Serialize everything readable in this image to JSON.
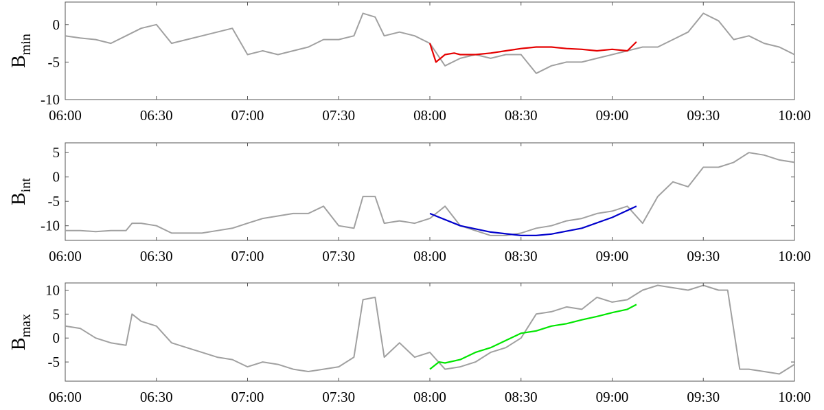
{
  "colors": {
    "raw": "#a0a0a0",
    "min_fit": "#e50000",
    "int_fit": "#0000cc",
    "max_fit": "#00e600",
    "axis": "#555555"
  },
  "chart_data": [
    {
      "type": "line",
      "ylabel_main": "B",
      "ylabel_sub": "min",
      "x_ticks": [
        "06:00",
        "06:30",
        "07:00",
        "07:30",
        "08:00",
        "08:30",
        "09:00",
        "09:30",
        "10:00"
      ],
      "xlim": [
        "06:00",
        "10:00"
      ],
      "ylim": [
        -10,
        3
      ],
      "y_ticks": [
        0,
        -5,
        -10
      ],
      "grid": false,
      "series": [
        {
          "role": "raw",
          "x": [
            "06:00",
            "06:05",
            "06:10",
            "06:15",
            "06:20",
            "06:25",
            "06:30",
            "06:35",
            "06:40",
            "06:45",
            "06:50",
            "06:55",
            "07:00",
            "07:05",
            "07:10",
            "07:15",
            "07:20",
            "07:25",
            "07:30",
            "07:35",
            "07:38",
            "07:42",
            "07:45",
            "07:50",
            "07:55",
            "08:00",
            "08:05",
            "08:10",
            "08:15",
            "08:20",
            "08:25",
            "08:30",
            "08:35",
            "08:40",
            "08:45",
            "08:50",
            "08:55",
            "09:00",
            "09:05",
            "09:10",
            "09:15",
            "09:20",
            "09:25",
            "09:30",
            "09:35",
            "09:40",
            "09:45",
            "09:50",
            "09:55",
            "10:00"
          ],
          "values": [
            -1.5,
            -1.8,
            -2.0,
            -2.5,
            -1.5,
            -0.5,
            0.0,
            -2.5,
            -2.0,
            -1.5,
            -1.0,
            -0.5,
            -4.0,
            -3.5,
            -4.0,
            -3.5,
            -3.0,
            -2.0,
            -2.0,
            -1.5,
            1.5,
            1.0,
            -1.5,
            -1.0,
            -1.5,
            -2.5,
            -5.5,
            -4.5,
            -4.0,
            -4.5,
            -4.0,
            -4.0,
            -6.5,
            -5.5,
            -5.0,
            -5.0,
            -4.5,
            -4.0,
            -3.5,
            -3.0,
            -3.0,
            -2.0,
            -1.0,
            1.5,
            0.5,
            -2.0,
            -1.5,
            -2.5,
            -3.0,
            -4.0
          ]
        },
        {
          "role": "min_fit",
          "x": [
            "08:00",
            "08:02",
            "08:05",
            "08:08",
            "08:10",
            "08:15",
            "08:20",
            "08:25",
            "08:30",
            "08:35",
            "08:40",
            "08:45",
            "08:50",
            "08:55",
            "09:00",
            "09:05",
            "09:08"
          ],
          "values": [
            -2.5,
            -5.0,
            -4.0,
            -3.8,
            -4.0,
            -4.0,
            -3.8,
            -3.5,
            -3.2,
            -3.0,
            -3.0,
            -3.2,
            -3.3,
            -3.5,
            -3.3,
            -3.5,
            -2.3
          ]
        }
      ]
    },
    {
      "type": "line",
      "ylabel_main": "B",
      "ylabel_sub": "int",
      "x_ticks": [
        "06:00",
        "06:30",
        "07:00",
        "07:30",
        "08:00",
        "08:30",
        "09:00",
        "09:30",
        "10:00"
      ],
      "xlim": [
        "06:00",
        "10:00"
      ],
      "ylim": [
        -13,
        7
      ],
      "y_ticks": [
        5,
        0,
        -5,
        -10
      ],
      "grid": false,
      "series": [
        {
          "role": "raw",
          "x": [
            "06:00",
            "06:05",
            "06:10",
            "06:15",
            "06:20",
            "06:22",
            "06:25",
            "06:30",
            "06:35",
            "06:40",
            "06:45",
            "06:50",
            "06:55",
            "07:00",
            "07:05",
            "07:10",
            "07:15",
            "07:20",
            "07:25",
            "07:30",
            "07:35",
            "07:38",
            "07:42",
            "07:45",
            "07:50",
            "07:55",
            "08:00",
            "08:05",
            "08:10",
            "08:15",
            "08:20",
            "08:25",
            "08:30",
            "08:35",
            "08:40",
            "08:45",
            "08:50",
            "08:55",
            "09:00",
            "09:05",
            "09:10",
            "09:15",
            "09:20",
            "09:25",
            "09:30",
            "09:35",
            "09:40",
            "09:45",
            "09:50",
            "09:55",
            "10:00"
          ],
          "values": [
            -11.0,
            -11.0,
            -11.2,
            -11.0,
            -11.0,
            -9.5,
            -9.5,
            -10.0,
            -11.5,
            -11.5,
            -11.5,
            -11.0,
            -10.5,
            -9.5,
            -8.5,
            -8.0,
            -7.5,
            -7.5,
            -6.0,
            -10.0,
            -10.5,
            -4.0,
            -4.0,
            -9.5,
            -9.0,
            -9.5,
            -8.5,
            -6.0,
            -10.0,
            -11.0,
            -12.0,
            -12.0,
            -11.5,
            -10.5,
            -10.0,
            -9.0,
            -8.5,
            -7.5,
            -7.0,
            -6.0,
            -9.5,
            -4.0,
            -1.0,
            -2.0,
            2.0,
            2.0,
            3.0,
            5.0,
            4.5,
            3.5,
            3.0
          ]
        },
        {
          "role": "int_fit",
          "x": [
            "08:00",
            "08:10",
            "08:20",
            "08:30",
            "08:35",
            "08:40",
            "08:50",
            "09:00",
            "09:08"
          ],
          "values": [
            -7.5,
            -10.0,
            -11.3,
            -12.0,
            -12.0,
            -11.7,
            -10.5,
            -8.3,
            -6.0
          ]
        }
      ]
    },
    {
      "type": "line",
      "ylabel_main": "B",
      "ylabel_sub": "max",
      "x_ticks": [
        "06:00",
        "06:30",
        "07:00",
        "07:30",
        "08:00",
        "08:30",
        "09:00",
        "09:30",
        "10:00"
      ],
      "xlim": [
        "06:00",
        "10:00"
      ],
      "ylim": [
        -9,
        11.5
      ],
      "y_ticks": [
        10,
        5,
        0,
        -5
      ],
      "grid": false,
      "series": [
        {
          "role": "raw",
          "x": [
            "06:00",
            "06:05",
            "06:10",
            "06:15",
            "06:20",
            "06:22",
            "06:25",
            "06:30",
            "06:35",
            "06:40",
            "06:45",
            "06:50",
            "06:55",
            "07:00",
            "07:05",
            "07:10",
            "07:15",
            "07:20",
            "07:25",
            "07:30",
            "07:35",
            "07:38",
            "07:42",
            "07:45",
            "07:50",
            "07:55",
            "08:00",
            "08:05",
            "08:10",
            "08:15",
            "08:20",
            "08:25",
            "08:30",
            "08:35",
            "08:40",
            "08:45",
            "08:50",
            "08:55",
            "09:00",
            "09:05",
            "09:10",
            "09:15",
            "09:20",
            "09:25",
            "09:30",
            "09:35",
            "09:38",
            "09:42",
            "09:45",
            "09:50",
            "09:55",
            "10:00"
          ],
          "values": [
            2.5,
            2.0,
            0.0,
            -1.0,
            -1.5,
            5.0,
            3.5,
            2.5,
            -1.0,
            -2.0,
            -3.0,
            -4.0,
            -4.5,
            -6.0,
            -5.0,
            -5.5,
            -6.5,
            -7.0,
            -6.5,
            -6.0,
            -4.0,
            8.0,
            8.5,
            -4.0,
            -1.0,
            -4.0,
            -3.0,
            -6.5,
            -6.0,
            -5.0,
            -3.0,
            -2.0,
            0.0,
            5.0,
            5.5,
            6.5,
            6.0,
            8.5,
            7.5,
            8.0,
            10.0,
            11.0,
            10.5,
            10.0,
            11.0,
            10.0,
            10.0,
            -6.5,
            -6.5,
            -7.0,
            -7.5,
            -5.5
          ]
        },
        {
          "role": "max_fit",
          "x": [
            "08:00",
            "08:03",
            "08:05",
            "08:10",
            "08:15",
            "08:20",
            "08:25",
            "08:30",
            "08:35",
            "08:40",
            "08:45",
            "08:50",
            "08:55",
            "09:00",
            "09:05",
            "09:08"
          ],
          "values": [
            -6.5,
            -5.0,
            -5.2,
            -4.5,
            -3.0,
            -2.0,
            -0.5,
            1.0,
            1.5,
            2.5,
            3.0,
            3.8,
            4.5,
            5.3,
            6.0,
            7.0
          ]
        }
      ]
    }
  ]
}
